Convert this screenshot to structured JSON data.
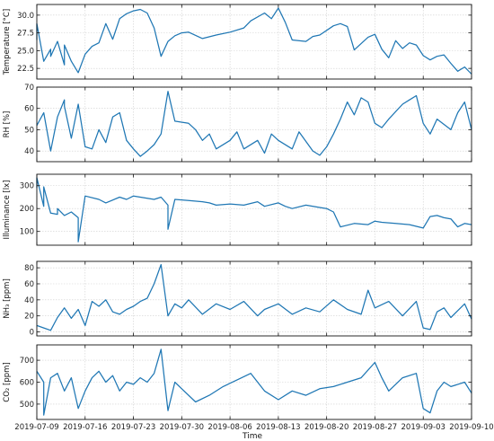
{
  "colors": {
    "series": "#1f77b4",
    "axes": "#111111",
    "grid": "#cfcfcf"
  },
  "shared_x": {
    "label": "Time",
    "tick_labels": [
      "2019-07-09",
      "2019-07-16",
      "2019-07-23",
      "2019-07-30",
      "2019-08-06",
      "2019-08-13",
      "2019-08-20",
      "2019-08-27",
      "2019-09-03",
      "2019-09-10"
    ],
    "range": [
      "2019-07-09",
      "2019-09-10"
    ]
  },
  "chart_data": [
    {
      "type": "line",
      "ylabel": "Temperature [°C]",
      "ylim": [
        21.0,
        31.5
      ],
      "yticks": [
        22.5,
        25.0,
        27.5,
        30.0
      ],
      "ytick_labels": [
        "22.5",
        "25.0",
        "27.5",
        "30.0"
      ],
      "grid": true,
      "x": [
        "2019-07-09",
        "2019-07-09",
        "2019-07-10",
        "2019-07-11",
        "2019-07-11",
        "2019-07-12",
        "2019-07-13",
        "2019-07-13",
        "2019-07-14",
        "2019-07-15",
        "2019-07-16",
        "2019-07-17",
        "2019-07-18",
        "2019-07-19",
        "2019-07-20",
        "2019-07-21",
        "2019-07-22",
        "2019-07-23",
        "2019-07-24",
        "2019-07-25",
        "2019-07-26",
        "2019-07-27",
        "2019-07-28",
        "2019-07-29",
        "2019-07-30",
        "2019-07-31",
        "2019-08-02",
        "2019-08-04",
        "2019-08-06",
        "2019-08-08",
        "2019-08-09",
        "2019-08-11",
        "2019-08-12",
        "2019-08-13",
        "2019-08-14",
        "2019-08-15",
        "2019-08-17",
        "2019-08-18",
        "2019-08-19",
        "2019-08-21",
        "2019-08-22",
        "2019-08-23",
        "2019-08-24",
        "2019-08-26",
        "2019-08-27",
        "2019-08-28",
        "2019-08-29",
        "2019-08-30",
        "2019-08-31",
        "2019-09-01",
        "2019-09-02",
        "2019-09-03",
        "2019-09-04",
        "2019-09-05",
        "2019-09-06",
        "2019-09-07",
        "2019-09-08",
        "2019-09-09",
        "2019-09-10"
      ],
      "y": [
        26.5,
        28.8,
        23.5,
        25.2,
        24.2,
        26.3,
        23.0,
        25.8,
        23.5,
        21.9,
        24.5,
        25.6,
        26.1,
        28.8,
        26.6,
        29.5,
        30.2,
        30.6,
        30.8,
        30.3,
        28.2,
        24.2,
        26.3,
        27.1,
        27.5,
        27.6,
        26.7,
        27.2,
        27.6,
        28.2,
        29.2,
        30.3,
        29.5,
        31.0,
        29.0,
        26.5,
        26.3,
        27.0,
        27.2,
        28.5,
        28.8,
        28.4,
        25.1,
        26.9,
        27.3,
        25.2,
        24.0,
        26.4,
        25.3,
        26.1,
        25.8,
        24.3,
        23.7,
        24.2,
        24.4,
        23.2,
        22.1,
        22.7,
        21.7
      ],
      "series": [
        {
          "color": "#1f77b4"
        }
      ]
    },
    {
      "type": "line",
      "ylabel": "RH [%]",
      "ylim": [
        35,
        70
      ],
      "yticks": [
        40,
        50,
        60,
        70
      ],
      "ytick_labels": [
        "40",
        "50",
        "60",
        "70"
      ],
      "grid": true,
      "x": [
        "2019-07-09",
        "2019-07-10",
        "2019-07-11",
        "2019-07-12",
        "2019-07-13",
        "2019-07-13",
        "2019-07-14",
        "2019-07-15",
        "2019-07-16",
        "2019-07-17",
        "2019-07-18",
        "2019-07-19",
        "2019-07-20",
        "2019-07-21",
        "2019-07-22",
        "2019-07-23",
        "2019-07-24",
        "2019-07-25",
        "2019-07-26",
        "2019-07-27",
        "2019-07-28",
        "2019-07-29",
        "2019-07-31",
        "2019-08-01",
        "2019-08-02",
        "2019-08-03",
        "2019-08-04",
        "2019-08-06",
        "2019-08-07",
        "2019-08-08",
        "2019-08-10",
        "2019-08-11",
        "2019-08-12",
        "2019-08-13",
        "2019-08-15",
        "2019-08-16",
        "2019-08-18",
        "2019-08-19",
        "2019-08-20",
        "2019-08-21",
        "2019-08-22",
        "2019-08-23",
        "2019-08-24",
        "2019-08-25",
        "2019-08-26",
        "2019-08-27",
        "2019-08-28",
        "2019-08-29",
        "2019-08-31",
        "2019-09-01",
        "2019-09-02",
        "2019-09-03",
        "2019-09-04",
        "2019-09-05",
        "2019-09-07",
        "2019-09-08",
        "2019-09-09",
        "2019-09-10"
      ],
      "y": [
        52,
        58,
        40,
        56,
        64,
        61,
        46,
        62,
        42,
        41,
        50,
        44,
        56,
        58,
        45,
        41,
        37.5,
        40,
        43,
        48,
        68,
        54,
        53,
        50,
        45,
        48,
        41,
        45,
        49,
        41,
        45,
        39,
        48,
        45,
        41,
        49,
        40,
        38,
        42,
        48,
        55,
        63,
        57,
        65,
        63,
        53,
        51,
        55,
        62,
        64,
        66,
        53,
        48,
        55,
        50,
        58,
        63,
        50
      ],
      "series": [
        {
          "color": "#1f77b4"
        }
      ]
    },
    {
      "type": "line",
      "ylabel": "Illuminance [lx]",
      "ylim": [
        40,
        350
      ],
      "yticks": [
        100,
        200,
        300
      ],
      "ytick_labels": [
        "100",
        "200",
        "300"
      ],
      "grid": true,
      "x": [
        "2019-07-09",
        "2019-07-09",
        "2019-07-10",
        "2019-07-10",
        "2019-07-11",
        "2019-07-12",
        "2019-07-12",
        "2019-07-13",
        "2019-07-14",
        "2019-07-15",
        "2019-07-15",
        "2019-07-16",
        "2019-07-18",
        "2019-07-19",
        "2019-07-21",
        "2019-07-22",
        "2019-07-23",
        "2019-07-25",
        "2019-07-26",
        "2019-07-27",
        "2019-07-28",
        "2019-07-28",
        "2019-07-29",
        "2019-07-31",
        "2019-08-02",
        "2019-08-03",
        "2019-08-04",
        "2019-08-06",
        "2019-08-08",
        "2019-08-10",
        "2019-08-11",
        "2019-08-13",
        "2019-08-14",
        "2019-08-15",
        "2019-08-17",
        "2019-08-19",
        "2019-08-20",
        "2019-08-21",
        "2019-08-22",
        "2019-08-24",
        "2019-08-26",
        "2019-08-27",
        "2019-08-28",
        "2019-08-30",
        "2019-09-01",
        "2019-09-03",
        "2019-09-04",
        "2019-09-05",
        "2019-09-06",
        "2019-09-07",
        "2019-09-08",
        "2019-09-09",
        "2019-09-10"
      ],
      "y": [
        290,
        335,
        210,
        295,
        180,
        175,
        200,
        170,
        185,
        160,
        55,
        255,
        240,
        225,
        250,
        240,
        255,
        245,
        240,
        250,
        215,
        110,
        240,
        235,
        230,
        225,
        215,
        220,
        215,
        230,
        210,
        225,
        210,
        200,
        215,
        205,
        200,
        185,
        120,
        135,
        130,
        145,
        140,
        135,
        130,
        115,
        165,
        170,
        160,
        155,
        120,
        135,
        130
      ],
      "series": [
        {
          "color": "#1f77b4"
        }
      ]
    },
    {
      "type": "line",
      "ylabel": "NH₃ [ppm]",
      "ylim": [
        -5,
        88
      ],
      "yticks": [
        0,
        20,
        40,
        60,
        80
      ],
      "ytick_labels": [
        "0",
        "20",
        "40",
        "60",
        "80"
      ],
      "grid": true,
      "x": [
        "2019-07-09",
        "2019-07-10",
        "2019-07-11",
        "2019-07-12",
        "2019-07-13",
        "2019-07-14",
        "2019-07-15",
        "2019-07-16",
        "2019-07-17",
        "2019-07-18",
        "2019-07-19",
        "2019-07-20",
        "2019-07-21",
        "2019-07-22",
        "2019-07-23",
        "2019-07-24",
        "2019-07-25",
        "2019-07-26",
        "2019-07-27",
        "2019-07-28",
        "2019-07-29",
        "2019-07-30",
        "2019-07-31",
        "2019-08-02",
        "2019-08-04",
        "2019-08-06",
        "2019-08-08",
        "2019-08-10",
        "2019-08-11",
        "2019-08-13",
        "2019-08-15",
        "2019-08-17",
        "2019-08-19",
        "2019-08-21",
        "2019-08-23",
        "2019-08-25",
        "2019-08-26",
        "2019-08-27",
        "2019-08-29",
        "2019-08-31",
        "2019-09-02",
        "2019-09-03",
        "2019-09-04",
        "2019-09-05",
        "2019-09-06",
        "2019-09-07",
        "2019-09-09",
        "2019-09-10"
      ],
      "y": [
        8,
        5,
        2,
        18,
        30,
        17,
        28,
        8,
        38,
        32,
        40,
        25,
        22,
        28,
        32,
        38,
        42,
        60,
        84,
        20,
        35,
        30,
        40,
        22,
        35,
        28,
        38,
        20,
        28,
        35,
        22,
        30,
        25,
        40,
        28,
        22,
        52,
        30,
        38,
        20,
        38,
        5,
        3,
        25,
        30,
        18,
        35,
        16
      ],
      "series": [
        {
          "color": "#1f77b4"
        }
      ]
    },
    {
      "type": "line",
      "ylabel": "CO₂ [ppm]",
      "ylim": [
        430,
        770
      ],
      "yticks": [
        500,
        600,
        700
      ],
      "ytick_labels": [
        "500",
        "600",
        "700"
      ],
      "grid": true,
      "x": [
        "2019-07-09",
        "2019-07-10",
        "2019-07-10",
        "2019-07-11",
        "2019-07-12",
        "2019-07-13",
        "2019-07-14",
        "2019-07-15",
        "2019-07-16",
        "2019-07-17",
        "2019-07-18",
        "2019-07-19",
        "2019-07-20",
        "2019-07-21",
        "2019-07-22",
        "2019-07-23",
        "2019-07-24",
        "2019-07-25",
        "2019-07-26",
        "2019-07-27",
        "2019-07-28",
        "2019-07-29",
        "2019-07-30",
        "2019-08-01",
        "2019-08-03",
        "2019-08-05",
        "2019-08-07",
        "2019-08-09",
        "2019-08-11",
        "2019-08-13",
        "2019-08-15",
        "2019-08-17",
        "2019-08-19",
        "2019-08-21",
        "2019-08-23",
        "2019-08-25",
        "2019-08-27",
        "2019-08-28",
        "2019-08-29",
        "2019-08-31",
        "2019-09-02",
        "2019-09-03",
        "2019-09-04",
        "2019-09-05",
        "2019-09-06",
        "2019-09-07",
        "2019-09-09",
        "2019-09-10"
      ],
      "y": [
        650,
        600,
        450,
        620,
        640,
        560,
        620,
        480,
        560,
        620,
        650,
        600,
        630,
        560,
        600,
        590,
        620,
        600,
        640,
        750,
        470,
        600,
        570,
        510,
        540,
        580,
        610,
        640,
        560,
        520,
        560,
        540,
        570,
        580,
        600,
        620,
        690,
        620,
        560,
        620,
        640,
        480,
        460,
        560,
        600,
        580,
        600,
        550
      ],
      "series": [
        {
          "color": "#1f77b4"
        }
      ]
    }
  ]
}
